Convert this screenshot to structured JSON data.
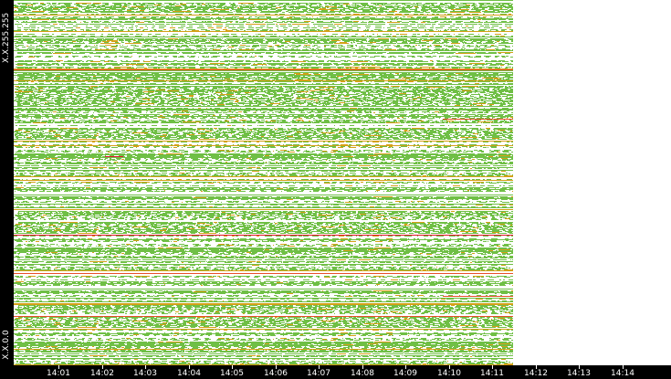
{
  "y_axis": {
    "top_label": "X.X.255.255",
    "bottom_label": "X.X.0.0"
  },
  "x_axis": {
    "ticks": [
      "14:01",
      "14:02",
      "14:03",
      "14:04",
      "14:05",
      "14:06",
      "14:07",
      "14:08",
      "14:09",
      "14:10",
      "14:11",
      "14:12",
      "14:13",
      "14:14"
    ]
  },
  "colors": {
    "background": "#000000",
    "plot_background": "#ffffff",
    "low_activity": "#6fbf45",
    "medium_activity": "#d4a017",
    "high_activity": "#e8502a",
    "peak_activity": "#e0182a",
    "axis_text": "#ffffff"
  },
  "chart_data": {
    "type": "heatmap",
    "xlabel": "",
    "ylabel": "",
    "x_ticks": [
      "14:01",
      "14:02",
      "14:03",
      "14:04",
      "14:05",
      "14:06",
      "14:07",
      "14:08",
      "14:09",
      "14:10",
      "14:11",
      "14:12",
      "14:13",
      "14:14"
    ],
    "y_range": [
      "X.X.0.0",
      "X.X.255.255"
    ],
    "legend": "none"
  }
}
